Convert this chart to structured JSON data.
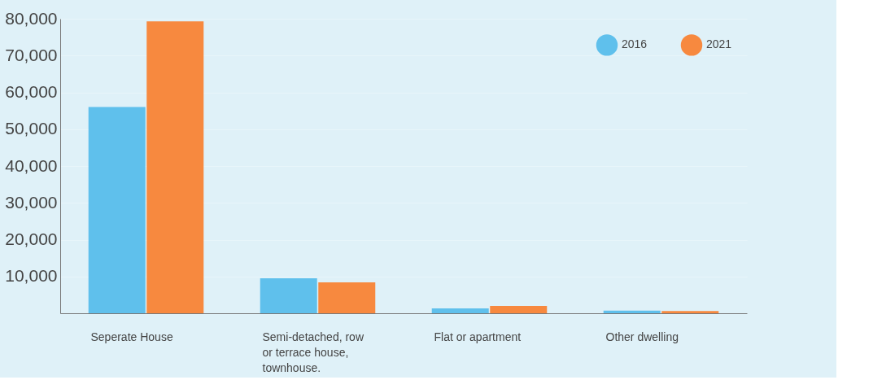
{
  "chart_data": {
    "type": "bar",
    "categories": [
      "Seperate House",
      "Semi-detached, row or terrace house, townhouse.",
      "Flat or apartment",
      "Other dwelling"
    ],
    "series": [
      {
        "name": "2016",
        "color": "#5fc0ec",
        "values": [
          56000,
          9500,
          1300,
          700
        ]
      },
      {
        "name": "2021",
        "color": "#f7893f",
        "values": [
          79300,
          8400,
          2000,
          600
        ]
      }
    ],
    "ylim": [
      0,
      80000
    ],
    "yticks": [
      {
        "value": 10000,
        "label": "10,000"
      },
      {
        "value": 20000,
        "label": "20,000"
      },
      {
        "value": 30000,
        "label": "30,000"
      },
      {
        "value": 40000,
        "label": "40,000"
      },
      {
        "value": 50000,
        "label": "50,000"
      },
      {
        "value": 60000,
        "label": "60,000"
      },
      {
        "value": 70000,
        "label": "70,000"
      },
      {
        "value": 80000,
        "label": "80,000"
      }
    ],
    "grid": "y",
    "legend": "top right"
  }
}
